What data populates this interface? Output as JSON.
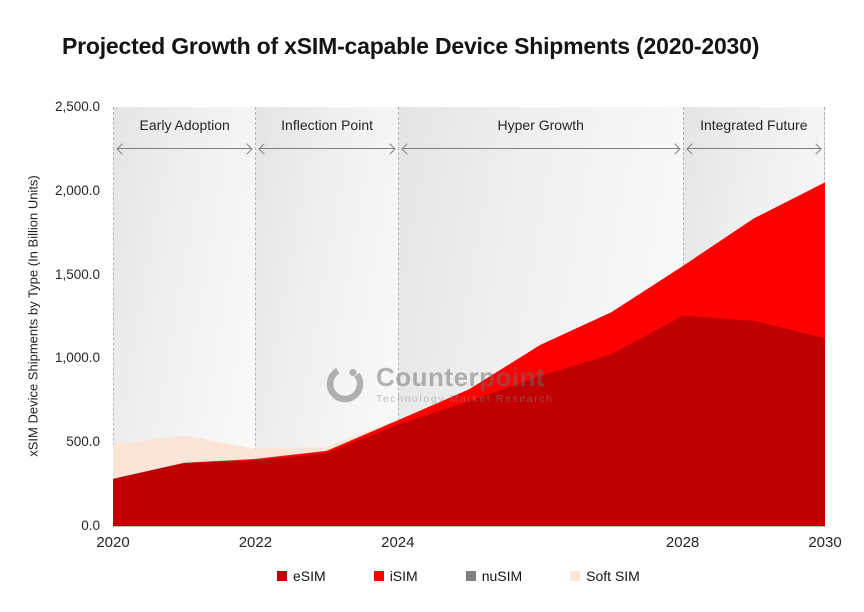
{
  "title": "Projected Growth of xSIM-capable Device Shipments (2020-2030)",
  "watermark": {
    "brand": "Counterpoint",
    "tagline": "Technology Market Research"
  },
  "y_axis": {
    "title": "xSIM Device Shipments by Type (In Billion Units)",
    "ticks": [
      {
        "label": "0.0",
        "value": 0
      },
      {
        "label": "500.0",
        "value": 500
      },
      {
        "label": "1,000.0",
        "value": 1000
      },
      {
        "label": "1,500.0",
        "value": 1500
      },
      {
        "label": "2,000.0",
        "value": 2000
      },
      {
        "label": "2,500.0",
        "value": 2500
      }
    ]
  },
  "x_axis": {
    "ticks": [
      {
        "label": "2020",
        "year": 2020
      },
      {
        "label": "2022",
        "year": 2022
      },
      {
        "label": "2024",
        "year": 2024
      },
      {
        "label": "2028",
        "year": 2028
      },
      {
        "label": "2030",
        "year": 2030
      }
    ]
  },
  "phases": [
    {
      "label": "Early Adoption",
      "start": 2020,
      "end": 2022
    },
    {
      "label": "Inflection Point",
      "start": 2022,
      "end": 2024
    },
    {
      "label": "Hyper Growth",
      "start": 2024,
      "end": 2028
    },
    {
      "label": "Integrated Future",
      "start": 2028,
      "end": 2030
    }
  ],
  "legend": [
    {
      "label": "eSIM",
      "color": "#C00000"
    },
    {
      "label": "iSIM",
      "color": "#FF0000"
    },
    {
      "label": "nuSIM",
      "color": "#7F7F7F"
    },
    {
      "label": "Soft SIM",
      "color": "#FCE4D6"
    }
  ],
  "chart_data": {
    "type": "area",
    "stacked": true,
    "title": "Projected Growth of xSIM-capable Device Shipments (2020-2030)",
    "xlabel": "",
    "ylabel": "xSIM Device Shipments by Type (In Billion Units)",
    "x": [
      2020,
      2021,
      2022,
      2023,
      2024,
      2025,
      2026,
      2027,
      2028,
      2029,
      2030
    ],
    "xlim": [
      2020,
      2030
    ],
    "ylim": [
      0,
      2500
    ],
    "grid": false,
    "legend_position": "bottom",
    "series": [
      {
        "name": "eSIM",
        "color": "#C00000",
        "values": [
          280,
          375,
          390,
          435,
          605,
          745,
          895,
          1025,
          1255,
          1225,
          1120
        ]
      },
      {
        "name": "iSIM",
        "color": "#FF0000",
        "values": [
          0,
          0,
          8,
          12,
          25,
          70,
          185,
          250,
          295,
          610,
          930
        ]
      },
      {
        "name": "nuSIM",
        "color": "#7F7F7F",
        "values": [
          2,
          3,
          3,
          2,
          0,
          0,
          0,
          0,
          0,
          0,
          0
        ]
      },
      {
        "name": "Soft SIM",
        "color": "#FCE4D6",
        "values": [
          205,
          160,
          60,
          25,
          5,
          0,
          0,
          0,
          0,
          0,
          0
        ]
      }
    ],
    "annotations": [
      "Early Adoption (2020-2022)",
      "Inflection Point (2022-2024)",
      "Hyper Growth (2024-2028)",
      "Integrated Future (2028-2030)"
    ]
  }
}
